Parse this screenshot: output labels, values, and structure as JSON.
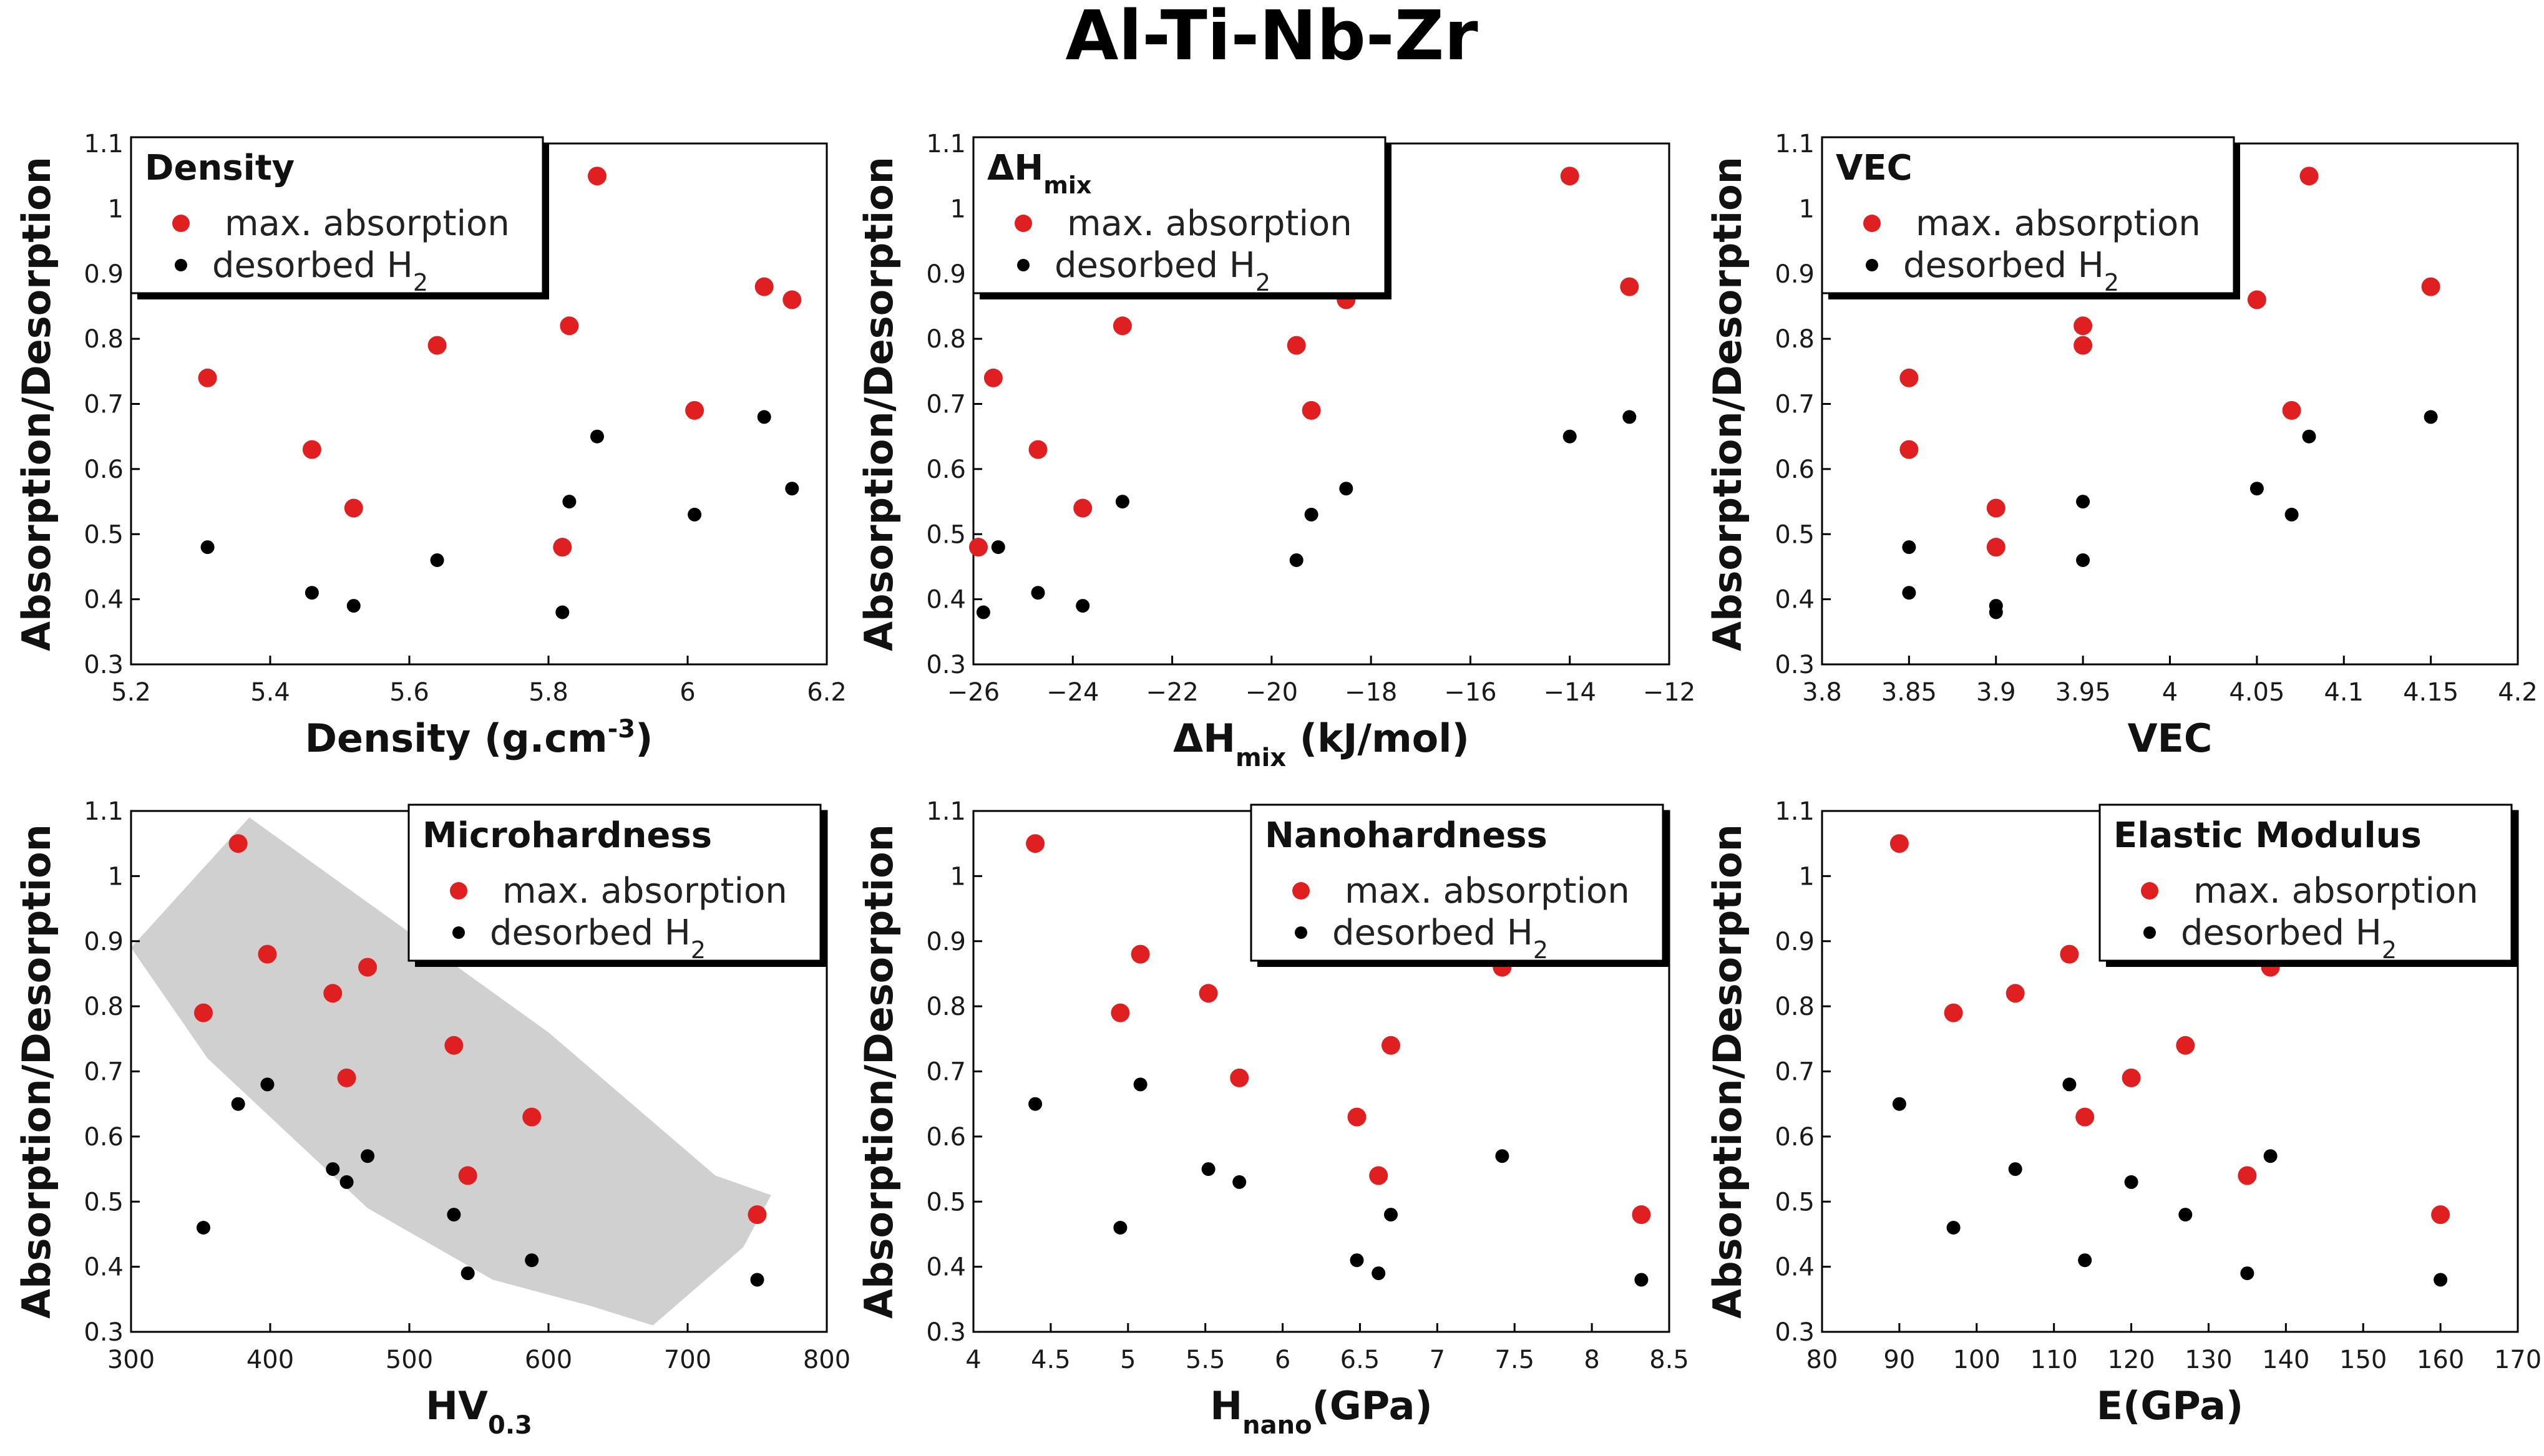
{
  "figure_title": "Al-Ti-Nb-Zr",
  "colors": {
    "max_absorption": "#e02020",
    "desorbed": "#000000",
    "band": "#d0d0d0"
  },
  "legend_labels": {
    "max": "max. absorption",
    "des_text": "desorbed H",
    "des_sub": "2"
  },
  "chart_data": [
    {
      "type": "scatter",
      "title": "Density",
      "xlabel": {
        "text": "Density (g.cm",
        "sup": "-3",
        "tail": ")"
      },
      "ylabel": "Absorption/Desorption",
      "xlim": [
        5.2,
        6.2
      ],
      "xticks": [
        "5.2",
        "5.4",
        "5.6",
        "5.8",
        "6",
        "6.2"
      ],
      "ylim": [
        0.3,
        1.1
      ],
      "yticks": [
        "0.3",
        "0.4",
        "0.5",
        "0.6",
        "0.7",
        "0.8",
        "0.9",
        "1",
        "1.1"
      ],
      "legend_position": "top-left",
      "series": [
        {
          "name": "max. absorption",
          "x": [
            5.31,
            5.46,
            5.52,
            5.64,
            5.82,
            5.83,
            5.87,
            6.01,
            6.11,
            6.15
          ],
          "y": [
            0.74,
            0.63,
            0.54,
            0.79,
            0.48,
            0.82,
            1.05,
            0.69,
            0.88,
            0.86
          ]
        },
        {
          "name": "desorbed H2",
          "x": [
            5.31,
            5.46,
            5.52,
            5.64,
            5.82,
            5.83,
            5.87,
            6.01,
            6.11,
            6.15
          ],
          "y": [
            0.48,
            0.41,
            0.39,
            0.46,
            0.38,
            0.55,
            0.65,
            0.53,
            0.68,
            0.57
          ]
        }
      ]
    },
    {
      "type": "scatter",
      "title": {
        "text": "ΔH",
        "sub": "mix"
      },
      "xlabel": {
        "text": "ΔH",
        "sub": "mix",
        "tail": " (kJ/mol)"
      },
      "ylabel": "Absorption/Desorption",
      "xlim": [
        -26,
        -12
      ],
      "xticks": [
        "−26",
        "−24",
        "−22",
        "−20",
        "−18",
        "−16",
        "−14",
        "−12"
      ],
      "ylim": [
        0.3,
        1.1
      ],
      "yticks": [
        "0.3",
        "0.4",
        "0.5",
        "0.6",
        "0.7",
        "0.8",
        "0.9",
        "1",
        "1.1"
      ],
      "legend_position": "top-left",
      "series": [
        {
          "name": "max. absorption",
          "x": [
            -25.9,
            -25.6,
            -24.7,
            -23.8,
            -23.0,
            -19.5,
            -19.2,
            -18.5,
            -14.0,
            -12.8
          ],
          "y": [
            0.48,
            0.74,
            0.63,
            0.54,
            0.82,
            0.79,
            0.69,
            0.86,
            1.05,
            0.88
          ]
        },
        {
          "name": "desorbed H2",
          "x": [
            -25.8,
            -25.5,
            -24.7,
            -23.8,
            -23.0,
            -19.5,
            -19.2,
            -18.5,
            -14.0,
            -12.8
          ],
          "y": [
            0.38,
            0.48,
            0.41,
            0.39,
            0.55,
            0.46,
            0.53,
            0.57,
            0.65,
            0.68
          ]
        }
      ]
    },
    {
      "type": "scatter",
      "title": "VEC",
      "xlabel": "VEC",
      "ylabel": "Absorption/Desorption",
      "xlim": [
        3.8,
        4.2
      ],
      "xticks": [
        "3.8",
        "3.85",
        "3.9",
        "3.95",
        "4",
        "4.05",
        "4.1",
        "4.15",
        "4.2"
      ],
      "ylim": [
        0.3,
        1.1
      ],
      "yticks": [
        "0.3",
        "0.4",
        "0.5",
        "0.6",
        "0.7",
        "0.8",
        "0.9",
        "1",
        "1.1"
      ],
      "legend_position": "top-left",
      "series": [
        {
          "name": "max. absorption",
          "x": [
            3.85,
            3.85,
            3.9,
            3.9,
            3.95,
            3.95,
            4.05,
            4.07,
            4.08,
            4.15
          ],
          "y": [
            0.74,
            0.63,
            0.54,
            0.48,
            0.82,
            0.79,
            0.86,
            0.69,
            1.05,
            0.88
          ]
        },
        {
          "name": "desorbed H2",
          "x": [
            3.85,
            3.85,
            3.9,
            3.9,
            3.95,
            3.95,
            4.05,
            4.07,
            4.08,
            4.15
          ],
          "y": [
            0.48,
            0.41,
            0.39,
            0.38,
            0.55,
            0.46,
            0.57,
            0.53,
            0.65,
            0.68
          ]
        }
      ]
    },
    {
      "type": "scatter",
      "title": "Microhardness",
      "xlabel": {
        "text": "HV",
        "sub": "0.3"
      },
      "ylabel": "Absorption/Desorption",
      "xlim": [
        300,
        800
      ],
      "xticks": [
        "300",
        "400",
        "500",
        "600",
        "700",
        "800"
      ],
      "ylim": [
        0.3,
        1.1
      ],
      "yticks": [
        "0.3",
        "0.4",
        "0.5",
        "0.6",
        "0.7",
        "0.8",
        "0.9",
        "1",
        "1.1"
      ],
      "legend_position": "top-right",
      "band": [
        [
          300,
          0.89
        ],
        [
          385,
          1.09
        ],
        [
          600,
          0.76
        ],
        [
          720,
          0.54
        ],
        [
          760,
          0.51
        ],
        [
          740,
          0.43
        ],
        [
          675,
          0.31
        ],
        [
          630,
          0.34
        ],
        [
          560,
          0.38
        ],
        [
          470,
          0.49
        ],
        [
          355,
          0.72
        ],
        [
          300,
          0.89
        ]
      ],
      "series": [
        {
          "name": "max. absorption",
          "x": [
            352,
            377,
            398,
            445,
            455,
            470,
            532,
            542,
            588,
            750
          ],
          "y": [
            0.79,
            1.05,
            0.88,
            0.82,
            0.69,
            0.86,
            0.74,
            0.54,
            0.63,
            0.48
          ]
        },
        {
          "name": "desorbed H2",
          "x": [
            352,
            377,
            398,
            445,
            455,
            470,
            532,
            542,
            588,
            750
          ],
          "y": [
            0.46,
            0.65,
            0.68,
            0.55,
            0.53,
            0.57,
            0.48,
            0.39,
            0.41,
            0.38
          ]
        }
      ]
    },
    {
      "type": "scatter",
      "title": "Nanohardness",
      "xlabel": {
        "text": "H",
        "sub": "nano",
        "tail": "(GPa)"
      },
      "ylabel": "Absorption/Desorption",
      "xlim": [
        4,
        8.5
      ],
      "xticks": [
        "4",
        "4.5",
        "5",
        "5.5",
        "6",
        "6.5",
        "7",
        "7.5",
        "8",
        "8.5"
      ],
      "ylim": [
        0.3,
        1.1
      ],
      "yticks": [
        "0.3",
        "0.4",
        "0.5",
        "0.6",
        "0.7",
        "0.8",
        "0.9",
        "1",
        "1.1"
      ],
      "legend_position": "top-right",
      "series": [
        {
          "name": "max. absorption",
          "x": [
            4.4,
            4.95,
            5.08,
            5.52,
            5.72,
            6.48,
            6.62,
            6.7,
            7.42,
            8.32
          ],
          "y": [
            1.05,
            0.79,
            0.88,
            0.82,
            0.69,
            0.63,
            0.54,
            0.74,
            0.86,
            0.48
          ]
        },
        {
          "name": "desorbed H2",
          "x": [
            4.4,
            4.95,
            5.08,
            5.52,
            5.72,
            6.48,
            6.62,
            6.7,
            7.42,
            8.32
          ],
          "y": [
            0.65,
            0.46,
            0.68,
            0.55,
            0.53,
            0.41,
            0.39,
            0.48,
            0.57,
            0.38
          ]
        }
      ]
    },
    {
      "type": "scatter",
      "title": "Elastic Modulus",
      "xlabel": "E(GPa)",
      "ylabel": "Absorption/Desorption",
      "xlim": [
        80,
        170
      ],
      "xticks": [
        "80",
        "90",
        "100",
        "110",
        "120",
        "130",
        "140",
        "150",
        "160",
        "170"
      ],
      "ylim": [
        0.3,
        1.1
      ],
      "yticks": [
        "0.3",
        "0.4",
        "0.5",
        "0.6",
        "0.7",
        "0.8",
        "0.9",
        "1",
        "1.1"
      ],
      "legend_position": "top-right",
      "series": [
        {
          "name": "max. absorption",
          "x": [
            90,
            97,
            105,
            112,
            114,
            120,
            127,
            135,
            138,
            160
          ],
          "y": [
            1.05,
            0.79,
            0.82,
            0.88,
            0.63,
            0.69,
            0.74,
            0.54,
            0.86,
            0.48
          ]
        },
        {
          "name": "desorbed H2",
          "x": [
            90,
            97,
            105,
            112,
            114,
            120,
            127,
            135,
            138,
            160
          ],
          "y": [
            0.65,
            0.46,
            0.55,
            0.68,
            0.41,
            0.53,
            0.48,
            0.39,
            0.57,
            0.38
          ]
        }
      ]
    }
  ]
}
